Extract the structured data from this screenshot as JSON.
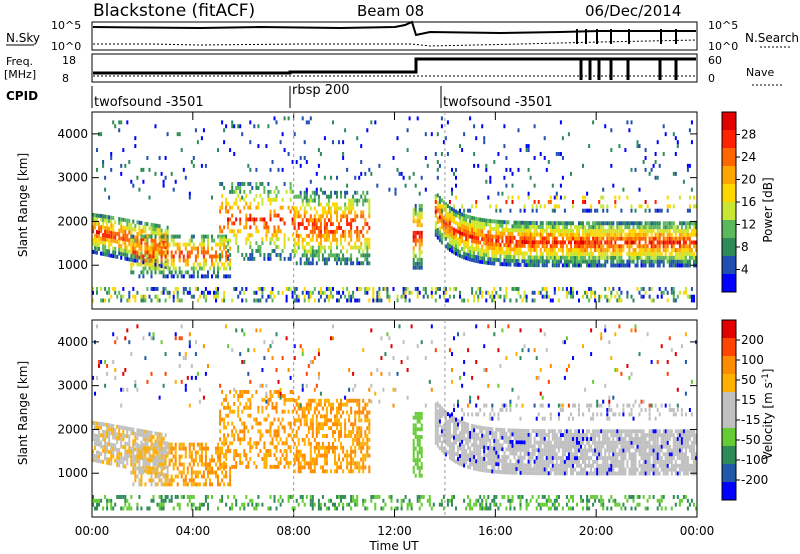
{
  "header": {
    "station": "Blackstone (fitACF)",
    "beam": "Beam 08",
    "date": "06/Dec/2014"
  },
  "top_panel": {
    "left_label": "N.Sky",
    "right_label": "N.Search",
    "left_ticks": [
      "10^5",
      "10^0"
    ],
    "right_ticks": [
      "10^5",
      "10^0"
    ]
  },
  "freq_panel": {
    "left_label_1": "Freq.",
    "left_label_2": "[MHz]",
    "right_label": "Nave",
    "left_ticks": [
      "18",
      "8"
    ],
    "right_ticks": [
      "60",
      "0"
    ]
  },
  "cpid": {
    "label": "CPID",
    "segments": [
      {
        "name": "twofsound -3501",
        "start_hr": 0,
        "end_hr": 8
      },
      {
        "name": "rbsp 200",
        "start_hr": 8,
        "end_hr": 14
      },
      {
        "name": "twofsound -3501",
        "start_hr": 14,
        "end_hr": 24
      }
    ]
  },
  "colors": {
    "power": [
      "#0000ff",
      "#1f4fb0",
      "#2e8b57",
      "#5cb85c",
      "#c8e632",
      "#ffd700",
      "#ffa500",
      "#ff6600",
      "#ff2200",
      "#e00000"
    ],
    "velocity": [
      "#e00000",
      "#ff4500",
      "#ff8c00",
      "#ffb000",
      "#c0c0c0",
      "#c0c0c0",
      "#66cc33",
      "#2e8b57",
      "#1e5aa8",
      "#0000ff"
    ]
  },
  "chart_data": [
    {
      "type": "heatmap",
      "title": "Blackstone (fitACF) Beam 08 06/Dec/2014",
      "xlabel": "",
      "ylabel": "Slant Range [km]",
      "xlim": [
        0,
        24
      ],
      "ylim": [
        0,
        4500
      ],
      "x_ticks": [
        0,
        4,
        8,
        12,
        16,
        20,
        24
      ],
      "y_ticks": [
        1000,
        2000,
        3000,
        4000
      ],
      "y_tick_labels": [
        "1000",
        "2000",
        "3000",
        "4000"
      ],
      "colorbar": {
        "label": "Power [dB]",
        "ticks": [
          "4",
          "8",
          "12",
          "16",
          "20",
          "24",
          "28"
        ],
        "range": [
          0,
          30
        ]
      }
    },
    {
      "type": "heatmap",
      "xlabel": "Time UT",
      "ylabel": "Slant Range [km]",
      "xlim": [
        0,
        24
      ],
      "ylim": [
        0,
        4500
      ],
      "x_ticks": [
        0,
        4,
        8,
        12,
        16,
        20,
        24
      ],
      "x_tick_labels": [
        "00:00",
        "04:00",
        "08:00",
        "12:00",
        "16:00",
        "20:00",
        "00:00"
      ],
      "y_ticks": [
        1000,
        2000,
        3000,
        4000
      ],
      "y_tick_labels": [
        "1000",
        "2000",
        "3000",
        "4000"
      ],
      "colorbar": {
        "label": "Velocity [m s^-1]",
        "ticks": [
          "200",
          "100",
          "50",
          "15",
          "-15",
          "-50",
          "-100",
          "-200"
        ],
        "range": [
          -250,
          250
        ]
      }
    }
  ]
}
